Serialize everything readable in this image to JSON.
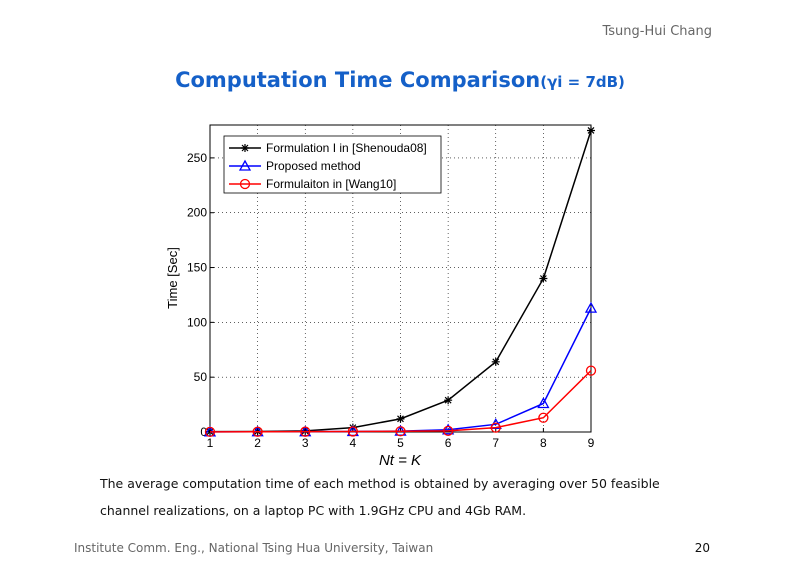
{
  "header": {
    "author": "Tsung-Hui Chang"
  },
  "slide": {
    "title": "Computation Time Comparison",
    "title_condition": "(γi = 7dB)",
    "caption_line1": "The average computation time of each method is obtained by averaging over 50 feasible",
    "caption_line2": "channel realizations, on a laptop PC with 1.9GHz CPU and 4Gb RAM."
  },
  "footer": {
    "institution": "Institute Comm. Eng., National Tsing Hua University, Taiwan",
    "page": "20"
  },
  "chart_data": {
    "type": "line",
    "title": "",
    "xlabel": "Nt = K",
    "ylabel": "Time [Sec]",
    "x": [
      1,
      2,
      3,
      4,
      5,
      6,
      7,
      8,
      9
    ],
    "xlim": [
      1,
      9
    ],
    "ylim": [
      0,
      280
    ],
    "xticks": [
      1,
      2,
      3,
      4,
      5,
      6,
      7,
      8,
      9
    ],
    "yticks": [
      0,
      50,
      100,
      150,
      200,
      250
    ],
    "grid": true,
    "legend_position": "top-left",
    "series": [
      {
        "name": "Formulation I in [Shenouda08]",
        "color": "#000000",
        "marker": "asterisk",
        "values": [
          0.3,
          0.5,
          1,
          4,
          12,
          29,
          64,
          140,
          275
        ]
      },
      {
        "name": "Proposed method",
        "color": "#0000ff",
        "marker": "triangle",
        "values": [
          0.1,
          0.2,
          0.3,
          0.5,
          0.8,
          2,
          7,
          26,
          113
        ]
      },
      {
        "name": "Formulaiton in [Wang10]",
        "color": "#ff0000",
        "marker": "circle",
        "values": [
          0.1,
          0.2,
          0.3,
          0.5,
          0.7,
          1,
          4,
          13,
          56
        ]
      }
    ]
  }
}
